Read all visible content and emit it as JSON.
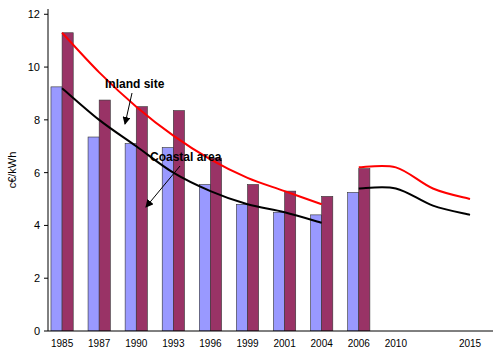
{
  "chart_data": {
    "type": "bar",
    "y_label": "c€/kWh",
    "categories": [
      "1985",
      "1987",
      "1990",
      "1993",
      "1996",
      "1999",
      "2001",
      "2004",
      "2006",
      "2010",
      null,
      "2015"
    ],
    "ylim": [
      0,
      12.2
    ],
    "yticks": [
      0,
      2,
      4,
      6,
      8,
      10,
      12
    ],
    "grid": false,
    "series": [
      {
        "type": "bar",
        "color": "#9999ff",
        "values": [
          9.25,
          7.35,
          7.1,
          6.95,
          5.55,
          4.8,
          4.5,
          4.4,
          5.25,
          null,
          null,
          null
        ]
      },
      {
        "type": "bar",
        "color": "#993366",
        "values": [
          11.3,
          8.75,
          8.5,
          8.35,
          6.55,
          5.55,
          5.3,
          5.1,
          6.15,
          null,
          null,
          null
        ]
      },
      {
        "name": "Inland site",
        "type": "line",
        "color": "#ff0000",
        "values": [
          11.3,
          9.8,
          8.5,
          7.4,
          6.5,
          5.8,
          5.3,
          4.8,
          null,
          null,
          null,
          null
        ]
      },
      {
        "name": "Coastal area",
        "type": "line",
        "color": "#000000",
        "values": [
          9.2,
          8.0,
          7.0,
          6.0,
          5.3,
          4.8,
          4.5,
          4.1,
          null,
          null,
          null,
          null
        ]
      },
      {
        "type": "line",
        "color": "#ff0000",
        "values": [
          null,
          null,
          null,
          null,
          null,
          null,
          null,
          null,
          6.2,
          6.2,
          5.4,
          5.0
        ]
      },
      {
        "type": "line",
        "color": "#000000",
        "values": [
          null,
          null,
          null,
          null,
          null,
          null,
          null,
          null,
          5.4,
          5.4,
          4.75,
          4.4
        ]
      }
    ]
  }
}
